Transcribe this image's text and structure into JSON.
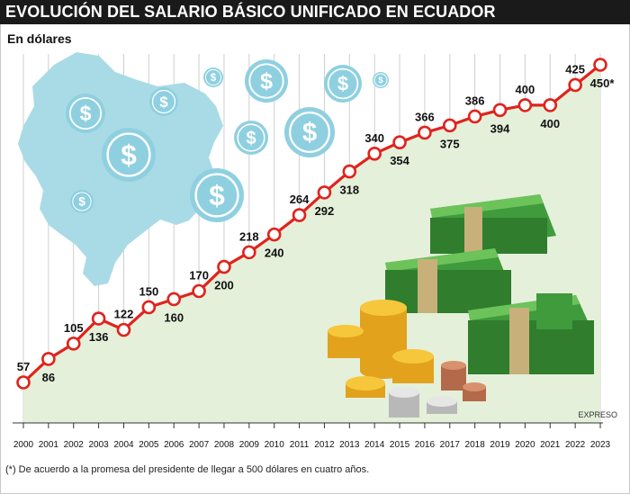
{
  "header": {
    "title": "EVOLUCIÓN DEL SALARIO BÁSICO UNIFICADO EN ECUADOR",
    "subtitle": "En dólares"
  },
  "footer": {
    "footnote": "(*) De acuerdo a la promesa del presidente de llegar a 500 dólares en cuatro años.",
    "source": "EXPRESO"
  },
  "colors": {
    "line": "#e0231c",
    "area": "#e4f0da",
    "map": "#a9dbe6",
    "coin": "#8fd0e0",
    "title_bg": "#1a1a1a"
  },
  "icons": [
    "dollar-coin-icon",
    "money-stack-icon",
    "gold-coin-icon",
    "ecuador-map-icon"
  ],
  "chart_data": {
    "type": "line",
    "title": "EVOLUCIÓN DEL SALARIO BÁSICO UNIFICADO EN ECUADOR",
    "subtitle": "En dólares",
    "xlabel": "",
    "ylabel": "",
    "categories": [
      "2000",
      "2001",
      "2002",
      "2003",
      "2004",
      "2005",
      "2006",
      "2007",
      "2008",
      "2009",
      "2010",
      "2011",
      "2012",
      "2013",
      "2014",
      "2015",
      "2016",
      "2017",
      "2018",
      "2019",
      "2020",
      "2021",
      "2022",
      "2023"
    ],
    "values": [
      57,
      86,
      105,
      136,
      122,
      150,
      160,
      170,
      200,
      218,
      240,
      264,
      292,
      318,
      340,
      354,
      366,
      375,
      386,
      394,
      400,
      400,
      425,
      450
    ],
    "data_labels": [
      "57",
      "86",
      "105",
      "136",
      "122",
      "150",
      "160",
      "170",
      "200",
      "218",
      "240",
      "264",
      "292",
      "318",
      "340",
      "354",
      "366",
      "375",
      "386",
      "394",
      "400",
      "400",
      "425",
      "450*"
    ],
    "ylim": [
      57,
      450
    ],
    "grid": true,
    "legend": "none"
  }
}
